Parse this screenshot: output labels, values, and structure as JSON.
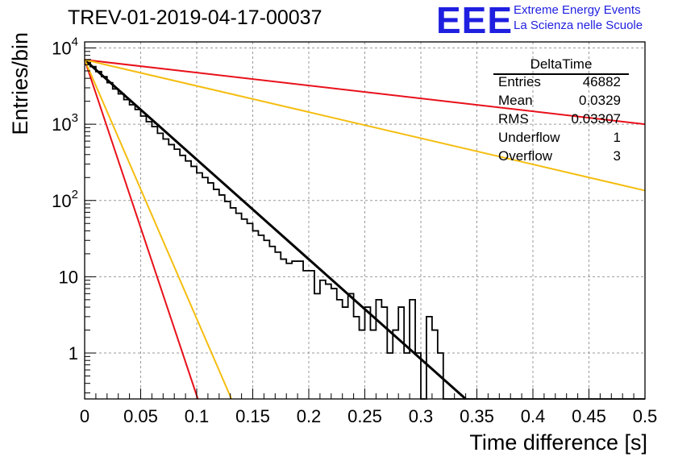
{
  "header": {
    "title": "TREV-01-2019-04-17-00037",
    "logo_text": "EEE",
    "logo_line1": "Extreme Energy Events",
    "logo_line2": "La Scienza nelle Scuole"
  },
  "stats_box": {
    "title": "DeltaTime",
    "rows": [
      {
        "key": "Entries",
        "value": "46882"
      },
      {
        "key": "Mean",
        "value": "0.0329"
      },
      {
        "key": "RMS",
        "value": "0.03307"
      },
      {
        "key": "Underflow",
        "value": "1"
      },
      {
        "key": "Overflow",
        "value": "3"
      }
    ]
  },
  "chart_data": {
    "type": "line",
    "title": "TREV-01-2019-04-17-00037",
    "xlabel": "Time difference [s]",
    "ylabel": "Entries/bin",
    "xlim": [
      0,
      0.5
    ],
    "ylim": [
      0.25,
      12000
    ],
    "yscale": "log",
    "grid": true,
    "xticks": [
      0,
      0.05,
      0.1,
      0.15,
      0.2,
      0.25,
      0.3,
      0.35,
      0.4,
      0.45,
      0.5
    ],
    "xtick_labels": [
      "0",
      "0.05",
      "0.1",
      "0.15",
      "0.2",
      "0.25",
      "0.3",
      "0.35",
      "0.4",
      "0.45",
      "0.5"
    ],
    "yticks": [
      1,
      10,
      100,
      1000,
      10000
    ],
    "ytick_labels": [
      {
        "base": "1",
        "exp": ""
      },
      {
        "base": "10",
        "exp": ""
      },
      {
        "base": "10",
        "exp": "2"
      },
      {
        "base": "10",
        "exp": "3"
      },
      {
        "base": "10",
        "exp": "4"
      }
    ],
    "histogram": {
      "bin_width": 0.005,
      "color": "#000000",
      "values": [
        7000,
        5700,
        4900,
        4200,
        3500,
        2900,
        2500,
        2100,
        1800,
        1560,
        1280,
        1080,
        930,
        760,
        640,
        540,
        470,
        390,
        330,
        280,
        230,
        200,
        170,
        140,
        118,
        97,
        80,
        68,
        57,
        50,
        40,
        35,
        30,
        25,
        21,
        17,
        15,
        16,
        16,
        12,
        12,
        6,
        9,
        8,
        7,
        5,
        4,
        6,
        3,
        2,
        4,
        2,
        5,
        4,
        1,
        2,
        4,
        1,
        5,
        1,
        0,
        3,
        2,
        1,
        0,
        0,
        0,
        0,
        0,
        0,
        0,
        0,
        0,
        0,
        0,
        0,
        0,
        0,
        0,
        0,
        0,
        0,
        0,
        0,
        0,
        0,
        0,
        0,
        0,
        0,
        0,
        0,
        0,
        0,
        0,
        0,
        0,
        0,
        0,
        0
      ]
    },
    "lines": [
      {
        "color": "#000000",
        "x": [
          0,
          0.34
        ],
        "y": [
          7000,
          0.25
        ]
      },
      {
        "color": "#e8101a",
        "x": [
          0,
          0.5
        ],
        "y": [
          7000,
          1000
        ]
      },
      {
        "color": "#e8101a",
        "x": [
          0,
          0.101
        ],
        "y": [
          7000,
          0.25
        ]
      },
      {
        "color": "#f5bd10",
        "x": [
          0,
          0.5
        ],
        "y": [
          7000,
          135
        ]
      },
      {
        "color": "#f5bd10",
        "x": [
          0,
          0.131
        ],
        "y": [
          7000,
          0.25
        ]
      }
    ]
  }
}
